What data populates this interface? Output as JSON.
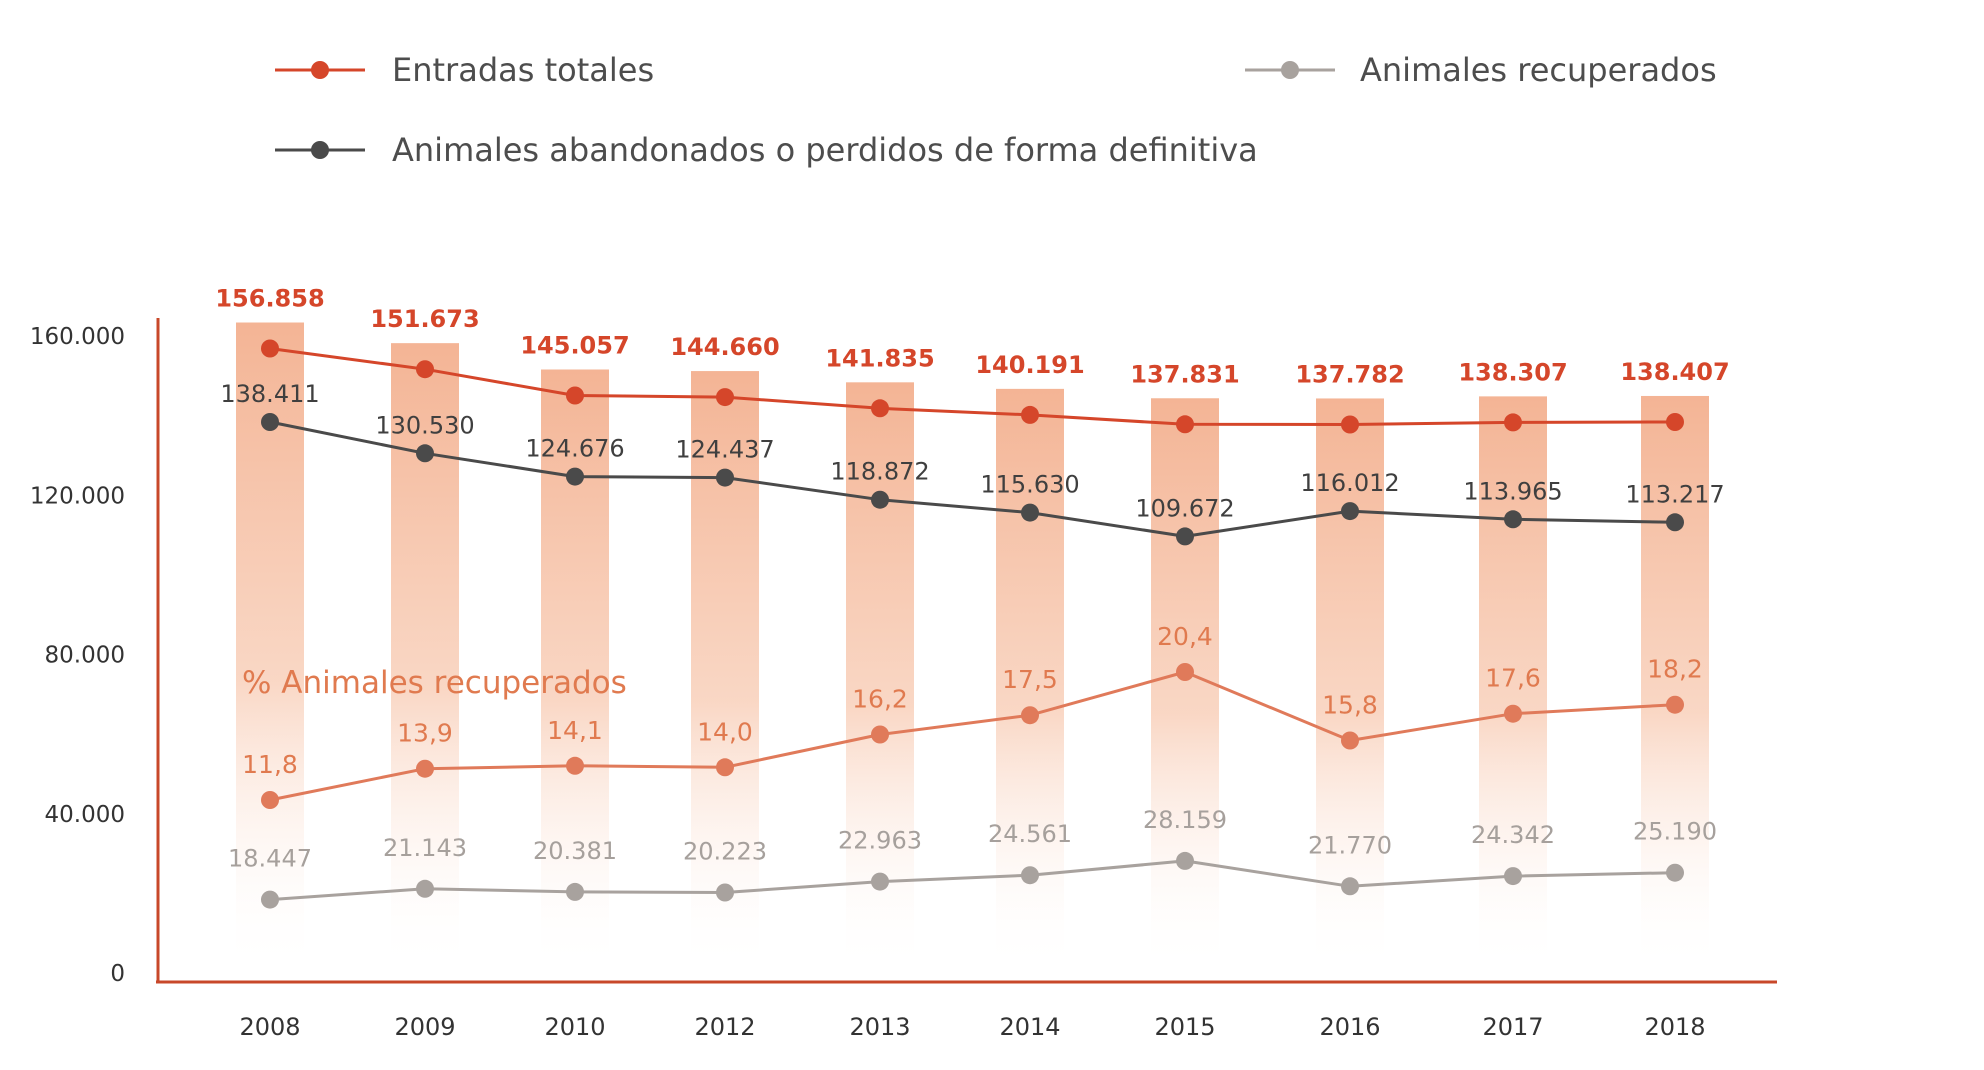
{
  "chart_data": {
    "type": "line",
    "categories": [
      "2008",
      "2009",
      "2010",
      "2012",
      "2013",
      "2014",
      "2015",
      "2016",
      "2017",
      "2018"
    ],
    "ylim": [
      0,
      160000
    ],
    "yticks": [
      0,
      40000,
      80000,
      120000,
      160000
    ],
    "ytick_labels": [
      "0",
      "40.000",
      "80.000",
      "120.000",
      "160.000"
    ],
    "legend": {
      "total": "Entradas totales",
      "recovered": "Animales recuperados",
      "abandoned": "Animales abandonados o perdidos de forma definitiva"
    },
    "pct_title": "% Animales recuperados",
    "series": [
      {
        "key": "total",
        "name": "Entradas totales",
        "color": "#d5462a",
        "values": [
          156858,
          151673,
          145057,
          144660,
          141835,
          140191,
          137831,
          137782,
          138307,
          138407
        ],
        "labels": [
          "156.858",
          "151.673",
          "145.057",
          "144.660",
          "141.835",
          "140.191",
          "137.831",
          "137.782",
          "138.307",
          "138.407"
        ]
      },
      {
        "key": "abandoned",
        "name": "Animales abandonados o perdidos de forma definitiva",
        "color": "#4a4a4a",
        "values": [
          138411,
          130530,
          124676,
          124437,
          118872,
          115630,
          109672,
          116012,
          113965,
          113217
        ],
        "labels": [
          "138.411",
          "130.530",
          "124.676",
          "124.437",
          "118.872",
          "115.630",
          "109.672",
          "116.012",
          "113.965",
          "113.217"
        ]
      },
      {
        "key": "pct",
        "name": "% Animales recuperados",
        "color": "#e07a5a",
        "values": [
          11.8,
          13.9,
          14.1,
          14.0,
          16.2,
          17.5,
          20.4,
          15.8,
          17.6,
          18.2
        ],
        "labels": [
          "11,8",
          "13,9",
          "14,1",
          "14,0",
          "16,2",
          "17,5",
          "20,4",
          "15,8",
          "17,6",
          "18,2"
        ]
      },
      {
        "key": "recovered",
        "name": "Animales recuperados",
        "color": "#a8a29e",
        "values": [
          18447,
          21143,
          20381,
          20223,
          22963,
          24561,
          28159,
          21770,
          24342,
          25190
        ],
        "labels": [
          "18.447",
          "21.143",
          "20.381",
          "20.223",
          "22.963",
          "24.561",
          "28.159",
          "21.770",
          "24.342",
          "25.190"
        ]
      }
    ]
  }
}
